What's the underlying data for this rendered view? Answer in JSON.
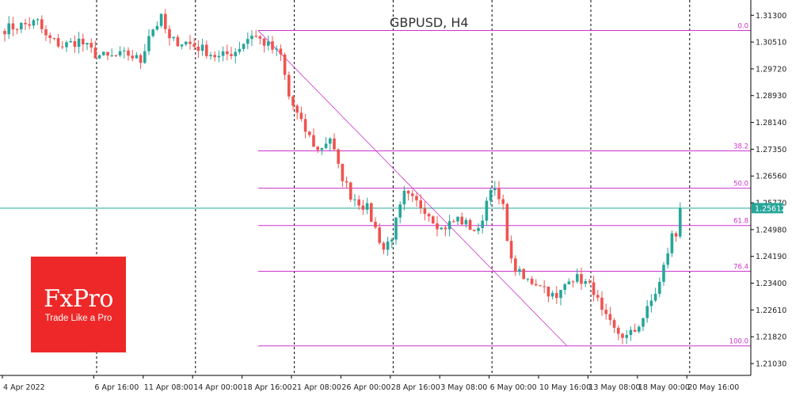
{
  "chart_data": {
    "type": "candlestick",
    "title": "GBPUSD, H4",
    "xlabel": "",
    "ylabel": "",
    "y_range": [
      1.2068,
      1.3175
    ],
    "y_ticks": [
      "1.31300",
      "1.30510",
      "1.29720",
      "1.28930",
      "1.28140",
      "1.27350",
      "1.26560",
      "1.25770",
      "1.24980",
      "1.24190",
      "1.23400",
      "1.22610",
      "1.21820",
      "1.21030"
    ],
    "x_ticks": [
      "4 Apr 2022",
      "6 Apr 16:00",
      "11 Apr 08:00",
      "14 Apr 00:00",
      "18 Apr 16:00",
      "21 Apr 08:00",
      "26 Apr 00:00",
      "28 Apr 16:00",
      "3 May 08:00",
      "6 May 00:00",
      "10 May 16:00",
      "13 May 08:00",
      "18 May 00:00",
      "20 May 16:00"
    ],
    "period_separators": [
      "4 Apr 2022",
      "11 Apr 08:00",
      "18 Apr 16:00",
      "26 Apr 00:00",
      "3 May 08:00",
      "10 May 16:00",
      "18 May 00:00"
    ],
    "bar_count": 165,
    "current_price": "1.25612",
    "current_price_value": 1.25612,
    "path": [
      [
        0,
        1.309
      ],
      [
        4,
        1.31
      ],
      [
        8,
        1.311
      ],
      [
        10,
        1.3065
      ],
      [
        14,
        1.304
      ],
      [
        18,
        1.3055
      ],
      [
        22,
        1.3015
      ],
      [
        25,
        1.3005
      ],
      [
        30,
        1.3015
      ],
      [
        33,
        1.2995
      ],
      [
        35,
        1.3075
      ],
      [
        38,
        1.312
      ],
      [
        40,
        1.3055
      ],
      [
        44,
        1.305
      ],
      [
        48,
        1.303
      ],
      [
        52,
        1.3005
      ],
      [
        56,
        1.3025
      ],
      [
        60,
        1.3075
      ],
      [
        64,
        1.304
      ],
      [
        67,
        1.301
      ],
      [
        69,
        1.289
      ],
      [
        72,
        1.281
      ],
      [
        76,
        1.273
      ],
      [
        79,
        1.277
      ],
      [
        81,
        1.268
      ],
      [
        84,
        1.26
      ],
      [
        88,
        1.256
      ],
      [
        90,
        1.25
      ],
      [
        92,
        1.244
      ],
      [
        94,
        1.248
      ],
      [
        97,
        1.26
      ],
      [
        102,
        1.256
      ],
      [
        106,
        1.25
      ],
      [
        110,
        1.253
      ],
      [
        115,
        1.249
      ],
      [
        118,
        1.263
      ],
      [
        121,
        1.256
      ],
      [
        123,
        1.24
      ],
      [
        126,
        1.235
      ],
      [
        130,
        1.234
      ],
      [
        134,
        1.229
      ],
      [
        137,
        1.236
      ],
      [
        140,
        1.235
      ],
      [
        143,
        1.232
      ],
      [
        145,
        1.225
      ],
      [
        148,
        1.22
      ],
      [
        151,
        1.218
      ],
      [
        153,
        1.22
      ],
      [
        156,
        1.226
      ],
      [
        159,
        1.234
      ],
      [
        162,
        1.248
      ],
      [
        165,
        1.248
      ],
      [
        168,
        1.238
      ],
      [
        171,
        1.245
      ],
      [
        175,
        1.248
      ],
      [
        178,
        1.247
      ],
      [
        181,
        1.2561
      ]
    ],
    "fibonacci": {
      "high": 1.3085,
      "low": 1.2155,
      "levels": [
        {
          "label": "0.0",
          "value": 1.3085
        },
        {
          "label": "38.2",
          "value": 1.273
        },
        {
          "label": "50.0",
          "value": 1.262
        },
        {
          "label": "61.8",
          "value": 1.251
        },
        {
          "label": "76.4",
          "value": 1.2375
        },
        {
          "label": "100.0",
          "value": 1.2155
        }
      ],
      "start": "21 Apr 08:00"
    },
    "colors": {
      "up": "#26a69a",
      "down": "#ef5350",
      "fib": "#cc33cc",
      "price_line": "#26a69a",
      "price_label_bg": "#26a69a",
      "grid": "#000000"
    }
  },
  "logo": {
    "name": "FxPro",
    "tagline": "Trade Like a Pro"
  }
}
